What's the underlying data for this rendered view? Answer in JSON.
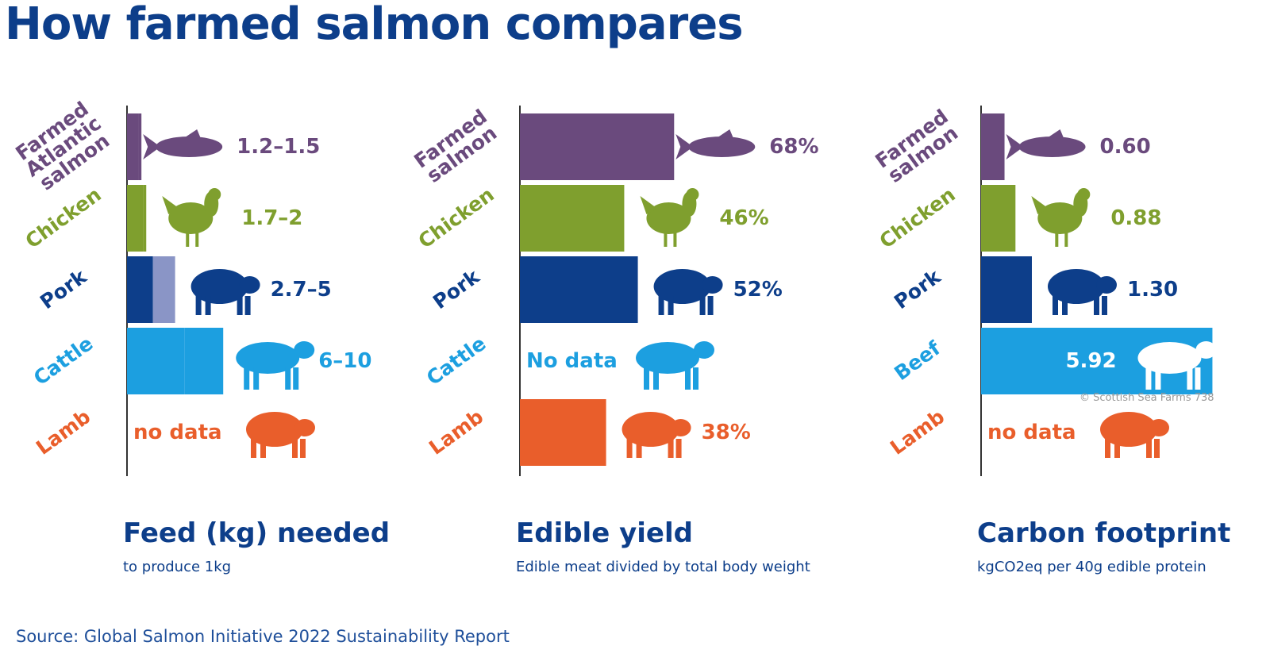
{
  "title": "How farmed salmon compares",
  "source": "Source: Global Salmon Initiative 2022 Sustainability Report",
  "credit": "© Scottish Sea Farms 738",
  "chart_data": [
    {
      "type": "bar",
      "orientation": "horizontal",
      "title": "Feed (kg) needed",
      "subtitle": "to produce 1kg",
      "categories": [
        "Farmed Atlantic salmon",
        "Chicken",
        "Pork",
        "Cattle",
        "Lamb"
      ],
      "values": [
        1.2,
        1.7,
        2.7,
        6,
        null
      ],
      "values_high": [
        1.5,
        2,
        5,
        10,
        null
      ],
      "value_labels": [
        "1.2–1.5",
        "1.7–2",
        "2.7–5",
        "6–10",
        "no data"
      ],
      "colors": [
        "#6a4a7d",
        "#7f9f2e",
        "#0d3e8a",
        "#1c9fe0",
        "#e95e2b"
      ],
      "range_colors": [
        "#6a4a7d",
        "#7f9f2e",
        "#8a95c6",
        "#1c9fe0",
        "#e95e2b"
      ],
      "xlim": [
        0,
        33
      ]
    },
    {
      "type": "bar",
      "orientation": "horizontal",
      "title": "Edible yield",
      "subtitle": "Edible meat divided by total body weight",
      "categories": [
        "Farmed salmon",
        "Chicken",
        "Pork",
        "Cattle",
        "Lamb"
      ],
      "values": [
        68,
        46,
        52,
        null,
        38
      ],
      "value_labels": [
        "68%",
        "46%",
        "52%",
        "No data",
        "38%"
      ],
      "colors": [
        "#6a4a7d",
        "#7f9f2e",
        "#0d3e8a",
        "#1c9fe0",
        "#e95e2b"
      ],
      "xlim": [
        0,
        140
      ]
    },
    {
      "type": "bar",
      "orientation": "horizontal",
      "title": "Carbon footprint",
      "subtitle": "kgCO2eq per 40g edible protein",
      "categories": [
        "Farmed salmon",
        "Chicken",
        "Pork",
        "Beef",
        "Lamb"
      ],
      "values": [
        0.6,
        0.88,
        1.3,
        5.92,
        null
      ],
      "value_labels": [
        "0.60",
        "0.88",
        "1.30",
        "5.92",
        "no data"
      ],
      "colors": [
        "#6a4a7d",
        "#7f9f2e",
        "#0d3e8a",
        "#1c9fe0",
        "#e95e2b"
      ],
      "xlim": [
        0,
        6.5
      ]
    }
  ]
}
